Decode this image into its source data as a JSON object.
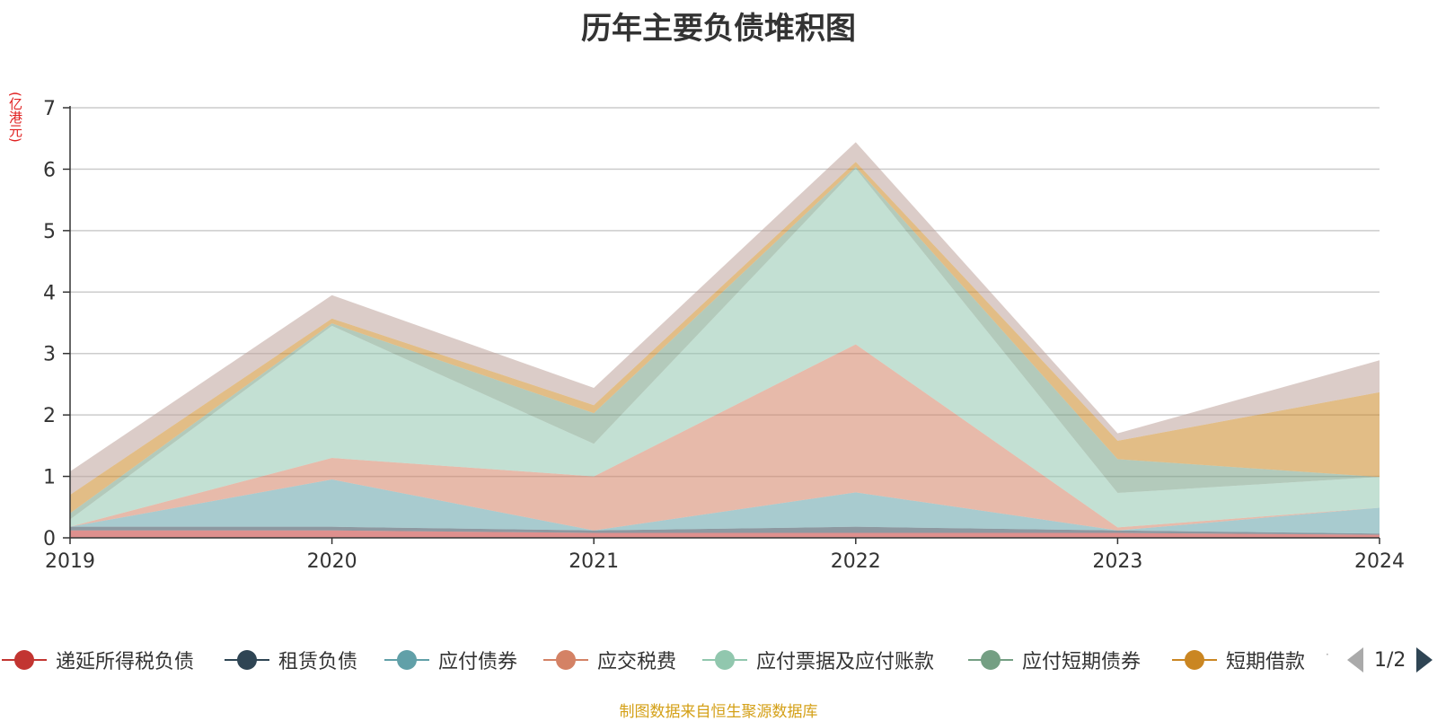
{
  "chart_data": {
    "type": "area",
    "title": "历年主要负债堆积图",
    "unit_label": "(亿港元)",
    "x": [
      "2019",
      "2020",
      "2021",
      "2022",
      "2023",
      "2024"
    ],
    "ylim": [
      0,
      7
    ],
    "yticks": [
      "0",
      "1",
      "2",
      "3",
      "4",
      "5",
      "6",
      "7"
    ],
    "stacked": true,
    "grid": true,
    "legend_position": "bottom",
    "series": [
      {
        "name": "递延所得税负债",
        "color": "#c23531",
        "values": [
          0.12,
          0.12,
          0.08,
          0.08,
          0.08,
          0.05
        ]
      },
      {
        "name": "租赁负债",
        "color": "#2f4554",
        "values": [
          0.06,
          0.06,
          0.04,
          0.1,
          0.04,
          0.02
        ]
      },
      {
        "name": "应付债券",
        "color": "#61a0a8",
        "values": [
          0.0,
          0.77,
          0.0,
          0.56,
          0.0,
          0.42
        ]
      },
      {
        "name": "应交税费",
        "color": "#d48265",
        "values": [
          0.0,
          0.35,
          0.88,
          2.41,
          0.05,
          0.0
        ]
      },
      {
        "name": "应付票据及应付账款",
        "color": "#91c7ae",
        "values": [
          0.12,
          2.15,
          0.53,
          2.86,
          0.56,
          0.5
        ]
      },
      {
        "name": "应付短期债券",
        "color": "#749f83",
        "values": [
          0.1,
          0.04,
          0.5,
          0.03,
          0.55,
          0.0
        ]
      },
      {
        "name": "短期借款",
        "color": "#ca8622",
        "values": [
          0.3,
          0.08,
          0.13,
          0.08,
          0.3,
          1.38
        ]
      },
      {
        "name": "",
        "color": "#bda29a",
        "values": [
          0.38,
          0.38,
          0.28,
          0.32,
          0.12,
          0.52
        ]
      }
    ]
  },
  "legend": {
    "items": [
      "递延所得税负债",
      "租赁负债",
      "应付债券",
      "应交税费",
      "应付票据及应付账款",
      "应付短期债券",
      "短期借款"
    ],
    "more_mark": "·",
    "page_indicator": "1/2"
  },
  "footer": {
    "source_note": "制图数据来自恒生聚源数据库"
  }
}
